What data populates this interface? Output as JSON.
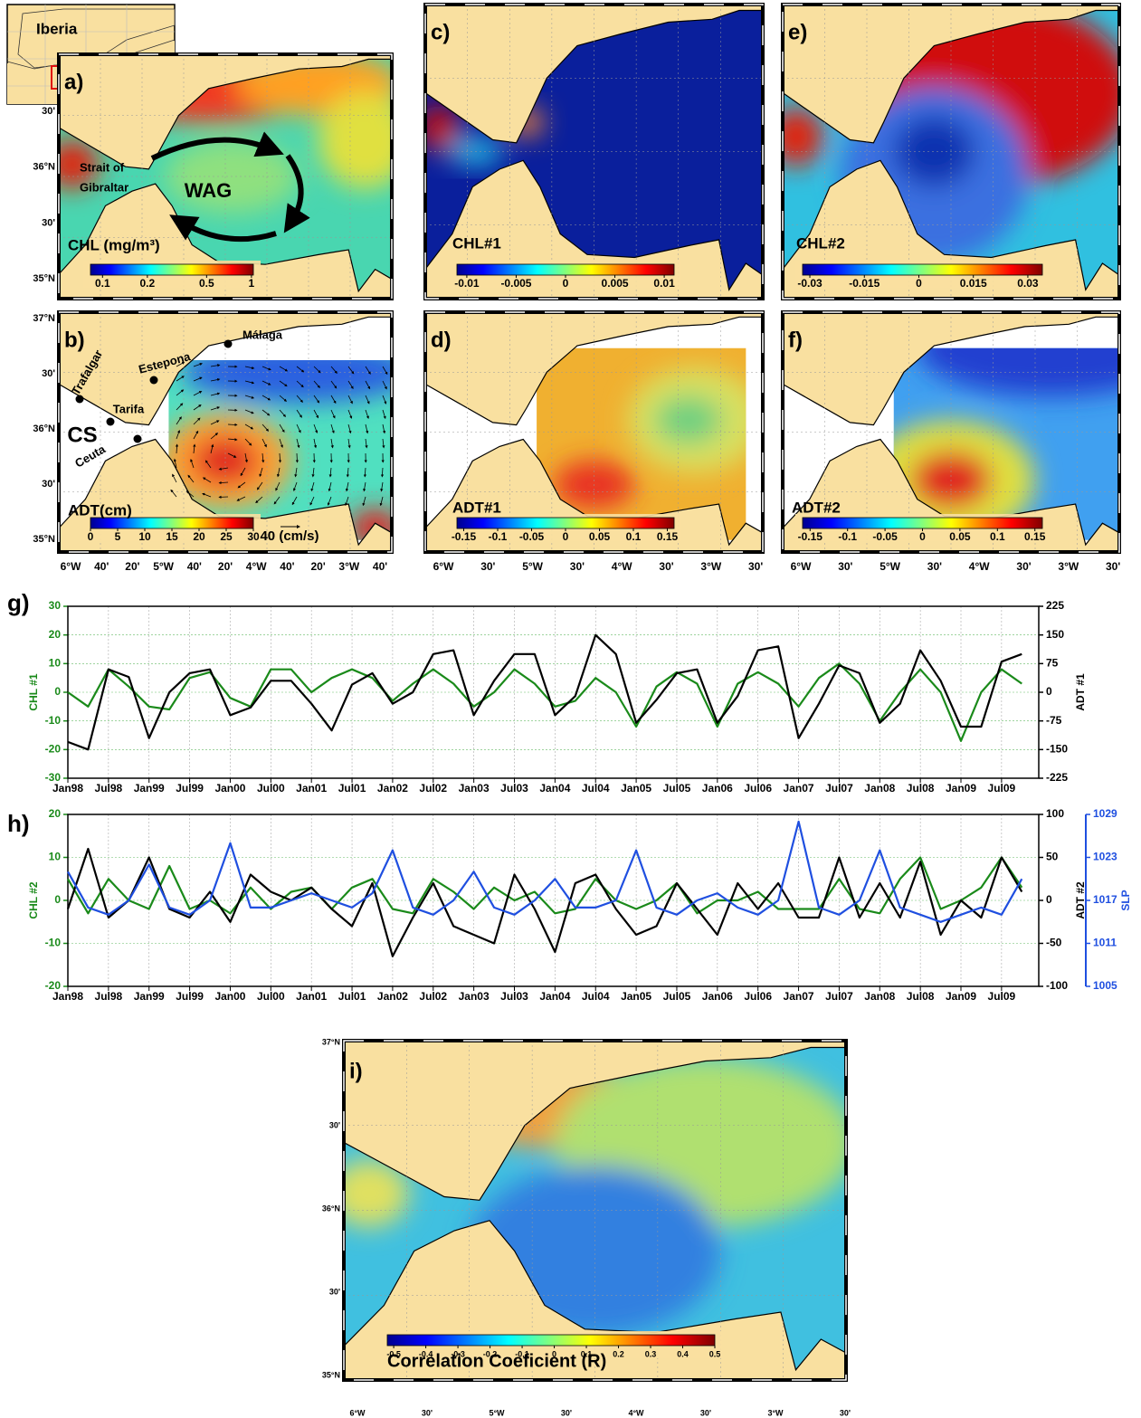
{
  "inset": {
    "label": "Iberia"
  },
  "maps": [
    {
      "panel": "a)",
      "title": "CHL (mg/m³)",
      "annotations": [
        "Strait of",
        "Gibraltar",
        "WAG"
      ],
      "colorbar": {
        "lim": [
          0.083,
          1.03
        ],
        "log": true,
        "ticks": [
          0.1,
          0.2,
          0.5,
          1
        ]
      },
      "lat_labels": [
        "30'",
        "36°N",
        "30'",
        "35°N"
      ],
      "lon_labels": []
    },
    {
      "panel": "b)",
      "title": "ADT(cm)",
      "annotations": [
        "Trafalgar",
        "Estepona",
        "Málaga",
        "Tarifa",
        "CS",
        "Ceuta",
        "40 (cm/s)"
      ],
      "colorbar": {
        "lim": [
          0,
          30
        ],
        "log": false,
        "ticks": [
          0,
          5,
          10,
          15,
          20,
          25,
          30
        ]
      },
      "lat_labels": [
        "37°N",
        "30'",
        "36°N",
        "30'",
        "35°N"
      ],
      "lon_labels": [
        "6°W",
        "40'",
        "20'",
        "5°W",
        "40'",
        "20'",
        "4°W",
        "40'",
        "20'",
        "3°W",
        "40'"
      ]
    },
    {
      "panel": "c)",
      "title": "CHL#1",
      "annotations": [],
      "colorbar": {
        "lim": [
          -0.011,
          0.011
        ],
        "log": false,
        "ticks": [
          -0.01,
          -0.005,
          0,
          0.005,
          0.01
        ]
      },
      "lat_labels": [],
      "lon_labels": []
    },
    {
      "panel": "d)",
      "title": "ADT#1",
      "annotations": [],
      "colorbar": {
        "lim": [
          -0.16,
          0.16
        ],
        "log": false,
        "ticks": [
          -0.15,
          -0.1,
          -0.05,
          0,
          0.05,
          0.1,
          0.15
        ]
      },
      "lat_labels": [],
      "lon_labels": [
        "6°W",
        "30'",
        "5°W",
        "30'",
        "4°W",
        "30'",
        "3°W",
        "30'"
      ]
    },
    {
      "panel": "e)",
      "title": "CHL#2",
      "annotations": [],
      "colorbar": {
        "lim": [
          -0.032,
          0.034
        ],
        "log": false,
        "ticks": [
          -0.03,
          -0.015,
          0,
          0.015,
          0.03
        ]
      },
      "lat_labels": [],
      "lon_labels": []
    },
    {
      "panel": "f)",
      "title": "ADT#2",
      "annotations": [],
      "colorbar": {
        "lim": [
          -0.16,
          0.16
        ],
        "log": false,
        "ticks": [
          -0.15,
          -0.1,
          -0.05,
          0,
          0.05,
          0.1,
          0.15
        ]
      },
      "lat_labels": [],
      "lon_labels": [
        "6°W",
        "30'",
        "5°W",
        "30'",
        "4°W",
        "30'",
        "3°W",
        "30'"
      ]
    },
    {
      "panel": "i)",
      "title": "Correlation Coeficient (R)",
      "annotations": [],
      "colorbar": {
        "lim": [
          -0.52,
          0.5
        ],
        "log": false,
        "ticks": [
          -0.5,
          -0.4,
          -0.3,
          -0.2,
          -0.1,
          0,
          0.1,
          0.2,
          0.3,
          0.4,
          0.5
        ]
      },
      "lat_labels": [
        "37°N",
        "30'",
        "36°N",
        "30'",
        "35°N"
      ],
      "lon_labels": [
        "6°W",
        "30'",
        "5°W",
        "30'",
        "4°W",
        "30'",
        "3°W",
        "30'"
      ]
    }
  ],
  "chart_data": [
    {
      "type": "line",
      "panel": "g)",
      "ylabel": "CHL #1",
      "y2label": "ADT #1",
      "grid": true,
      "x": [
        0,
        3,
        6,
        9,
        12,
        15,
        18,
        21,
        24,
        27,
        30,
        33,
        36,
        39,
        42,
        45,
        48,
        51,
        54,
        57,
        60,
        63,
        66,
        69,
        72,
        75,
        78,
        81,
        84,
        87,
        90,
        93,
        96,
        99,
        102,
        105,
        108,
        111,
        114,
        117,
        120,
        123,
        126,
        129,
        132,
        135,
        138,
        141
      ],
      "xlim": [
        0,
        143.5
      ],
      "xticks": [
        {
          "value": 0,
          "label": "Jan98"
        },
        {
          "value": 6,
          "label": "Jul98"
        },
        {
          "value": 12,
          "label": "Jan99"
        },
        {
          "value": 18,
          "label": "Jul99"
        },
        {
          "value": 24,
          "label": "Jan00"
        },
        {
          "value": 30,
          "label": "Jul00"
        },
        {
          "value": 36,
          "label": "Jan01"
        },
        {
          "value": 42,
          "label": "Jul01"
        },
        {
          "value": 48,
          "label": "Jan02"
        },
        {
          "value": 54,
          "label": "Jul02"
        },
        {
          "value": 60,
          "label": "Jan03"
        },
        {
          "value": 66,
          "label": "Jul03"
        },
        {
          "value": 72,
          "label": "Jan04"
        },
        {
          "value": 78,
          "label": "Jul04"
        },
        {
          "value": 84,
          "label": "Jan05"
        },
        {
          "value": 90,
          "label": "Jul05"
        },
        {
          "value": 96,
          "label": "Jan06"
        },
        {
          "value": 102,
          "label": "Jul06"
        },
        {
          "value": 108,
          "label": "Jan07"
        },
        {
          "value": 114,
          "label": "Jul07"
        },
        {
          "value": 120,
          "label": "Jan08"
        },
        {
          "value": 126,
          "label": "Jul08"
        },
        {
          "value": 132,
          "label": "Jan09"
        },
        {
          "value": 138,
          "label": "Jul09"
        }
      ],
      "ylim": [
        -30,
        30
      ],
      "yticks": [
        -30,
        -20,
        -10,
        0,
        10,
        20,
        30
      ],
      "y2lim": [
        -225,
        225
      ],
      "y2ticks": [
        -225,
        -150,
        -75,
        0,
        75,
        150,
        225
      ],
      "series": [
        {
          "color": "#1a8a1a",
          "axis": "y",
          "values": [
            0,
            -5,
            8,
            2,
            -5,
            -6,
            5,
            7,
            -2,
            -5,
            8,
            8,
            0,
            5,
            8,
            5,
            -3,
            3,
            8,
            3,
            -5,
            0,
            8,
            3,
            -5,
            -3,
            5,
            0,
            -12,
            2,
            7,
            3,
            -12,
            3,
            7,
            3,
            -5,
            5,
            10,
            3,
            -10,
            0,
            8,
            0,
            -17,
            0,
            8,
            3
          ]
        },
        {
          "color": "#000000",
          "axis": "y2",
          "values": [
            -130,
            -150,
            60,
            40,
            -120,
            0,
            50,
            60,
            -60,
            -40,
            30,
            30,
            -30,
            -100,
            20,
            50,
            -30,
            0,
            100,
            110,
            -60,
            30,
            100,
            100,
            -60,
            -10,
            150,
            100,
            -80,
            -20,
            50,
            60,
            -80,
            -10,
            110,
            120,
            -120,
            -30,
            70,
            50,
            -80,
            -30,
            110,
            30,
            -90,
            -90,
            80,
            100
          ]
        }
      ]
    },
    {
      "type": "line",
      "panel": "h)",
      "ylabel": "CHL #2",
      "y2label": "ADT #2",
      "y3label": "SLP",
      "grid": true,
      "x": [
        0,
        3,
        6,
        9,
        12,
        15,
        18,
        21,
        24,
        27,
        30,
        33,
        36,
        39,
        42,
        45,
        48,
        51,
        54,
        57,
        60,
        63,
        66,
        69,
        72,
        75,
        78,
        81,
        84,
        87,
        90,
        93,
        96,
        99,
        102,
        105,
        108,
        111,
        114,
        117,
        120,
        123,
        126,
        129,
        132,
        135,
        138,
        141
      ],
      "xlim": [
        0,
        143.5
      ],
      "xticks": [
        {
          "value": 0,
          "label": "Jan98"
        },
        {
          "value": 6,
          "label": "Jul98"
        },
        {
          "value": 12,
          "label": "Jan99"
        },
        {
          "value": 18,
          "label": "Jul99"
        },
        {
          "value": 24,
          "label": "Jan00"
        },
        {
          "value": 30,
          "label": "Jul00"
        },
        {
          "value": 36,
          "label": "Jan01"
        },
        {
          "value": 42,
          "label": "Jul01"
        },
        {
          "value": 48,
          "label": "Jan02"
        },
        {
          "value": 54,
          "label": "Jul02"
        },
        {
          "value": 60,
          "label": "Jan03"
        },
        {
          "value": 66,
          "label": "Jul03"
        },
        {
          "value": 72,
          "label": "Jan04"
        },
        {
          "value": 78,
          "label": "Jul04"
        },
        {
          "value": 84,
          "label": "Jan05"
        },
        {
          "value": 90,
          "label": "Jul05"
        },
        {
          "value": 96,
          "label": "Jan06"
        },
        {
          "value": 102,
          "label": "Jul06"
        },
        {
          "value": 108,
          "label": "Jan07"
        },
        {
          "value": 114,
          "label": "Jul07"
        },
        {
          "value": 120,
          "label": "Jan08"
        },
        {
          "value": 126,
          "label": "Jul08"
        },
        {
          "value": 132,
          "label": "Jan09"
        },
        {
          "value": 138,
          "label": "Jul09"
        }
      ],
      "ylim": [
        -20,
        20
      ],
      "yticks": [
        -20,
        -10,
        0,
        10,
        20
      ],
      "y2lim": [
        -100,
        100
      ],
      "y2ticks": [
        -100,
        -50,
        0,
        50,
        100
      ],
      "y3lim": [
        1005,
        1029
      ],
      "y3ticks": [
        1005,
        1011,
        1017,
        1023,
        1029
      ],
      "series": [
        {
          "color": "#1a8a1a",
          "axis": "y",
          "values": [
            5,
            -3,
            5,
            0,
            -2,
            8,
            -2,
            0,
            -3,
            3,
            -2,
            2,
            3,
            -2,
            3,
            5,
            -2,
            -3,
            5,
            2,
            -2,
            3,
            0,
            2,
            -3,
            -2,
            5,
            0,
            -2,
            0,
            4,
            -3,
            0,
            0,
            2,
            -2,
            -2,
            -2,
            5,
            -2,
            -3,
            5,
            10,
            -2,
            0,
            3,
            10,
            3
          ]
        },
        {
          "color": "#000000",
          "axis": "y2",
          "values": [
            -10,
            60,
            -20,
            0,
            50,
            -10,
            -20,
            10,
            -25,
            30,
            10,
            0,
            15,
            -10,
            -30,
            20,
            -65,
            -20,
            20,
            -30,
            -40,
            -50,
            30,
            -10,
            -60,
            20,
            30,
            -10,
            -40,
            -30,
            20,
            -10,
            -40,
            20,
            -10,
            20,
            -20,
            -20,
            50,
            -20,
            20,
            -20,
            45,
            -40,
            0,
            -20,
            50,
            10
          ]
        },
        {
          "color": "#1f4fe0",
          "axis": "y3",
          "values": [
            1021,
            1016,
            1015,
            1017,
            1022,
            1016,
            1015,
            1017,
            1025,
            1016,
            1016,
            1017,
            1018,
            1017,
            1016,
            1018,
            1024,
            1016,
            1015,
            1017,
            1021,
            1016,
            1015,
            1017,
            1020,
            1016,
            1016,
            1017,
            1024,
            1016,
            1015,
            1017,
            1018,
            1016,
            1015,
            1017,
            1028,
            1016,
            1015,
            1017,
            1024,
            1016,
            1015,
            1014,
            1015,
            1016,
            1015,
            1020
          ]
        }
      ]
    }
  ]
}
